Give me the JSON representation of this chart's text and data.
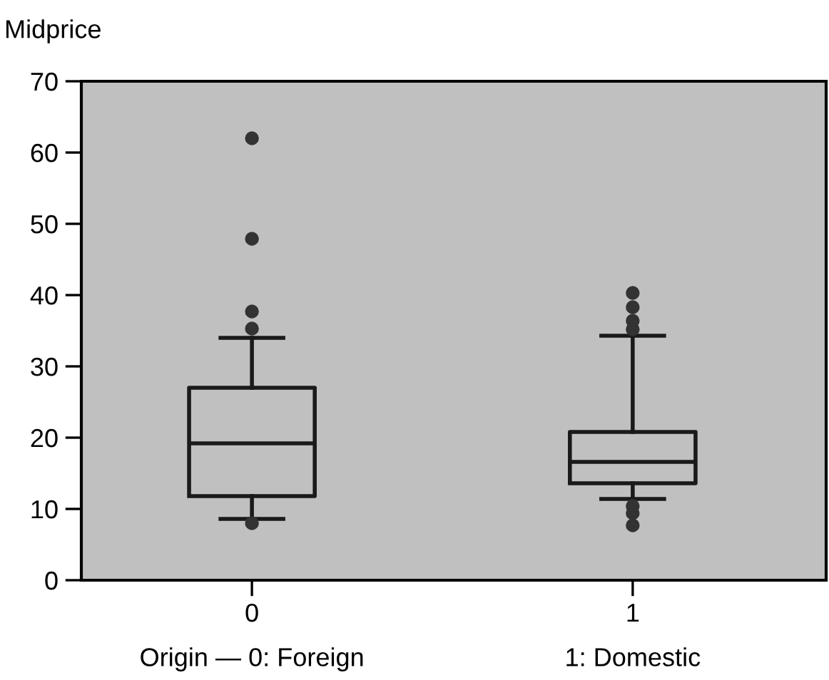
{
  "chart_data": {
    "type": "box",
    "ylabel": "Midprice",
    "categories": [
      "0",
      "1"
    ],
    "boxes": [
      {
        "low": 8.6,
        "q1": 11.8,
        "median": 19.2,
        "q3": 27,
        "high": 34,
        "outliers": [
          62,
          47.9,
          37.7,
          35.3,
          8
        ]
      },
      {
        "low": 11.4,
        "q1": 13.6,
        "median": 16.6,
        "q3": 20.8,
        "high": 34.3,
        "outliers": [
          40.3,
          38.3,
          36.4,
          35.2,
          10.4,
          9.4,
          7.7
        ]
      }
    ],
    "annotations": [
      "Origin — 0: Foreign",
      "1: Domestic"
    ],
    "ylim": [
      0,
      70
    ],
    "yticks": [
      0,
      10,
      20,
      30,
      40,
      50,
      60,
      70
    ],
    "grid": false
  }
}
